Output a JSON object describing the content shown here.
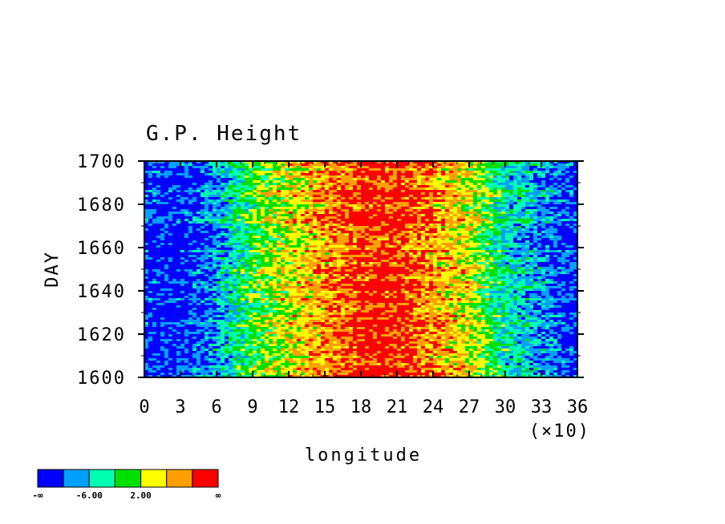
{
  "chart_data": {
    "type": "heatmap",
    "title": "G.P. Height",
    "xlabel": "longitude",
    "ylabel": "DAY",
    "x_multiplier_label": "(×10)",
    "xlim": [
      0,
      36
    ],
    "ylim": [
      1600,
      1700
    ],
    "x_ticks": [
      "0",
      "3",
      "6",
      "9",
      "12",
      "15",
      "18",
      "21",
      "24",
      "27",
      "30",
      "33",
      "36"
    ],
    "y_ticks": [
      "1600",
      "1620",
      "1640",
      "1660",
      "1680",
      "1700"
    ],
    "colorbar": {
      "colors": [
        "#0000ff",
        "#00a0ff",
        "#00ffb0",
        "#00e000",
        "#ffff00",
        "#ffa000",
        "#ff0000"
      ],
      "labels": [
        "-∞",
        "-6.00",
        "2.00",
        "∞"
      ]
    },
    "band_profile": {
      "description_values_by_longitude_x10": [
        {
          "lon": 0,
          "level": 0
        },
        {
          "lon": 3,
          "level": 0
        },
        {
          "lon": 6,
          "level": 1
        },
        {
          "lon": 9,
          "level": 3
        },
        {
          "lon": 12,
          "level": 4
        },
        {
          "lon": 15,
          "level": 5
        },
        {
          "lon": 18,
          "level": 6
        },
        {
          "lon": 21,
          "level": 6
        },
        {
          "lon": 24,
          "level": 5
        },
        {
          "lon": 27,
          "level": 4
        },
        {
          "lon": 30,
          "level": 2
        },
        {
          "lon": 33,
          "level": 1
        },
        {
          "lon": 36,
          "level": 0
        }
      ]
    }
  }
}
